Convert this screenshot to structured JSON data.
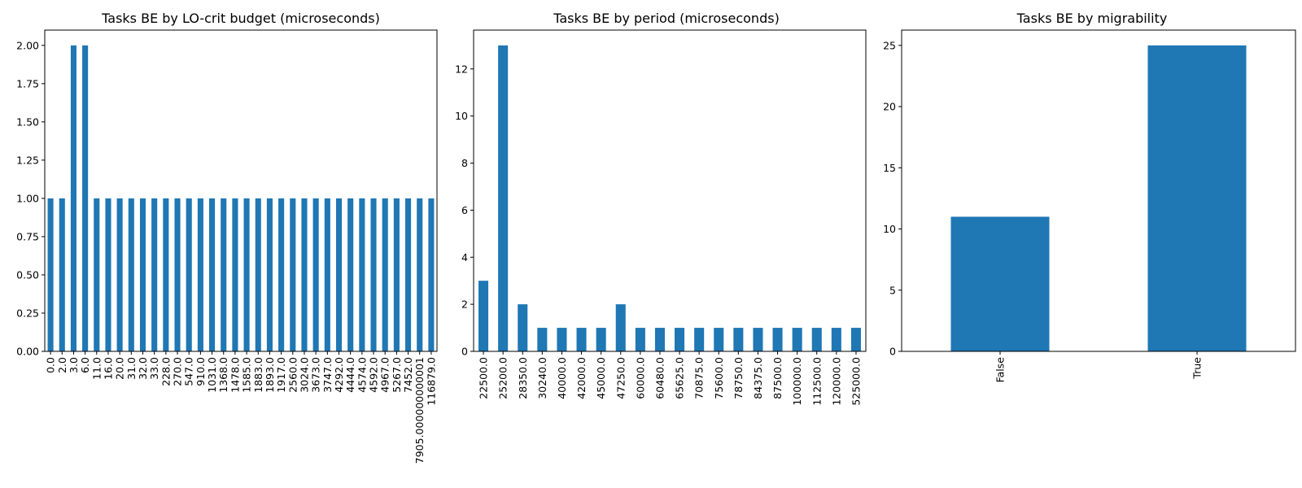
{
  "chart_data": [
    {
      "type": "bar",
      "title": "Tasks BE by LO-crit budget (microseconds)",
      "xlabel": "",
      "ylabel": "",
      "categories": [
        "0.0",
        "2.0",
        "3.0",
        "6.0",
        "11.0",
        "16.0",
        "20.0",
        "31.0",
        "32.0",
        "33.0",
        "228.0",
        "270.0",
        "547.0",
        "910.0",
        "1031.0",
        "1368.0",
        "1478.0",
        "1585.0",
        "1883.0",
        "1893.0",
        "1917.0",
        "2560.0",
        "3024.0",
        "3673.0",
        "3747.0",
        "4292.0",
        "4444.0",
        "4574.0",
        "4592.0",
        "4967.0",
        "5267.0",
        "7452.0",
        "7905.000000000001",
        "116879.0"
      ],
      "values": [
        1,
        1,
        2,
        2,
        1,
        1,
        1,
        1,
        1,
        1,
        1,
        1,
        1,
        1,
        1,
        1,
        1,
        1,
        1,
        1,
        1,
        1,
        1,
        1,
        1,
        1,
        1,
        1,
        1,
        1,
        1,
        1,
        1,
        1
      ],
      "ylim": [
        0,
        2.1
      ],
      "yticks": [
        0,
        0.25,
        0.5,
        0.75,
        1.0,
        1.25,
        1.5,
        1.75,
        2.0
      ],
      "ytick_labels": [
        "0.00",
        "0.25",
        "0.50",
        "0.75",
        "1.00",
        "1.25",
        "1.50",
        "1.75",
        "2.00"
      ],
      "color": "#1f77b4",
      "grid": false,
      "legend": "none"
    },
    {
      "type": "bar",
      "title": "Tasks BE by period (microseconds)",
      "xlabel": "",
      "ylabel": "",
      "categories": [
        "22500.0",
        "25200.0",
        "28350.0",
        "30240.0",
        "40000.0",
        "42000.0",
        "45000.0",
        "47250.0",
        "60000.0",
        "60480.0",
        "65625.0",
        "70875.0",
        "75600.0",
        "78750.0",
        "84375.0",
        "87500.0",
        "100000.0",
        "112500.0",
        "120000.0",
        "525000.0"
      ],
      "values": [
        3,
        13,
        2,
        1,
        1,
        1,
        1,
        2,
        1,
        1,
        1,
        1,
        1,
        1,
        1,
        1,
        1,
        1,
        1,
        1
      ],
      "ylim": [
        0,
        13.65
      ],
      "yticks": [
        0,
        2,
        4,
        6,
        8,
        10,
        12
      ],
      "ytick_labels": [
        "0",
        "2",
        "4",
        "6",
        "8",
        "10",
        "12"
      ],
      "color": "#1f77b4",
      "grid": false,
      "legend": "none"
    },
    {
      "type": "bar",
      "title": "Tasks BE by migrability",
      "xlabel": "",
      "ylabel": "",
      "categories": [
        "False",
        "True"
      ],
      "values": [
        11,
        25
      ],
      "ylim": [
        0,
        26.25
      ],
      "yticks": [
        0,
        5,
        10,
        15,
        20,
        25
      ],
      "ytick_labels": [
        "0",
        "5",
        "10",
        "15",
        "20",
        "25"
      ],
      "color": "#1f77b4",
      "grid": false,
      "legend": "none"
    }
  ]
}
